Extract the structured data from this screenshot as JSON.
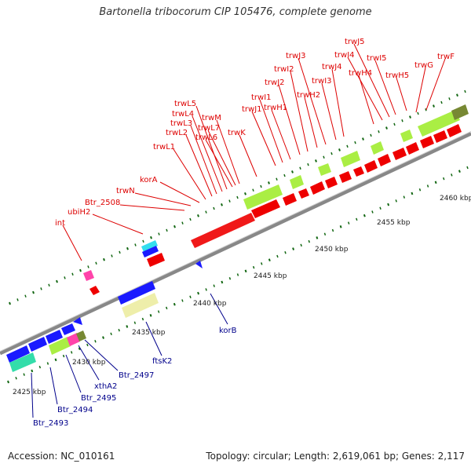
{
  "title": "Bartonella tribocorum CIP 105476, complete genome",
  "footer": {
    "accession": "Accession: NC_010161",
    "stats": "Topology: circular; Length: 2,619,061 bp; Genes: 2,117"
  },
  "colors": {
    "red_gene": "#ee0000",
    "green_gene": "#aaee44",
    "blue_gene": "#1a1aff",
    "label_red": "#dd0000",
    "label_blue": "#00008b",
    "backbone": "#888888",
    "tick": "#116611"
  },
  "ticks": [
    "2425 kbp",
    "2430 kbp",
    "2435 kbp",
    "2440 kbp",
    "2445 kbp",
    "2450 kbp",
    "2455 kbp",
    "2460 kbp"
  ],
  "top_labels": [
    "int",
    "ubiH2",
    "Btr_2508",
    "trwN",
    "korA",
    "trwL1",
    "trwL2",
    "trwL3",
    "trwL4",
    "trwL5",
    "trwL6",
    "trwL7",
    "trwM",
    "trwK",
    "trwJ1",
    "trwI1",
    "trwH1",
    "trwJ2",
    "trwI2",
    "trwH2",
    "trwJ3",
    "trwI3",
    "trwJ4",
    "trwH4",
    "trwI4",
    "trwJ5",
    "trwI5",
    "trwH5",
    "trwG",
    "trwF"
  ],
  "bottom_labels": [
    "Btr_2493",
    "Btr_2494",
    "Btr_2495",
    "xthA2",
    "Btr_2497",
    "ftsK2",
    "korB"
  ]
}
